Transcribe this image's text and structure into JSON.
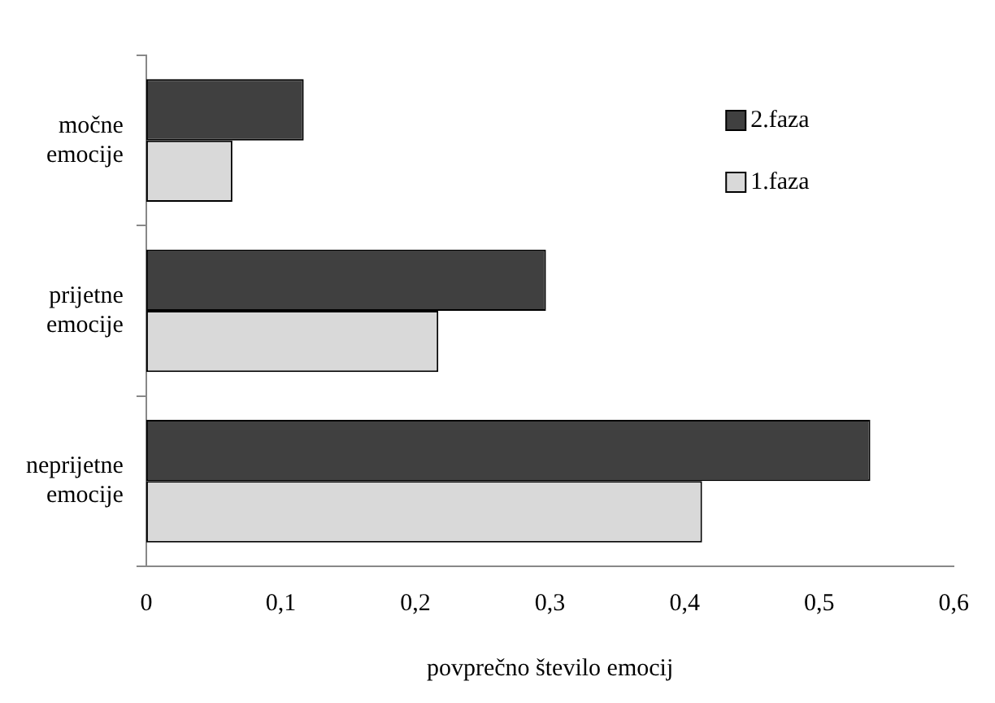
{
  "chart_data": {
    "type": "bar",
    "orientation": "horizontal",
    "xlabel": "povprečno število emocij",
    "categories": [
      "močne emocije",
      "prijetne emocije",
      "neprijetne emocije"
    ],
    "series": [
      {
        "name": "2.faza",
        "color": "#404040",
        "values": [
          0.117,
          0.297,
          0.538
        ]
      },
      {
        "name": "1.faza",
        "color": "#d9d9d9",
        "values": [
          0.064,
          0.217,
          0.413
        ]
      }
    ],
    "xlim": [
      0,
      0.6
    ],
    "xticks": [
      0,
      {
        "value": 0.1,
        "label": "0,1"
      },
      {
        "value": 0.2,
        "label": "0,2"
      },
      {
        "value": 0.3,
        "label": "0,3"
      },
      {
        "value": 0.4,
        "label": "0,4"
      },
      {
        "value": 0.5,
        "label": "0,5"
      },
      {
        "value": 0.6,
        "label": "0,6"
      }
    ],
    "grid": false,
    "legend": "right"
  }
}
